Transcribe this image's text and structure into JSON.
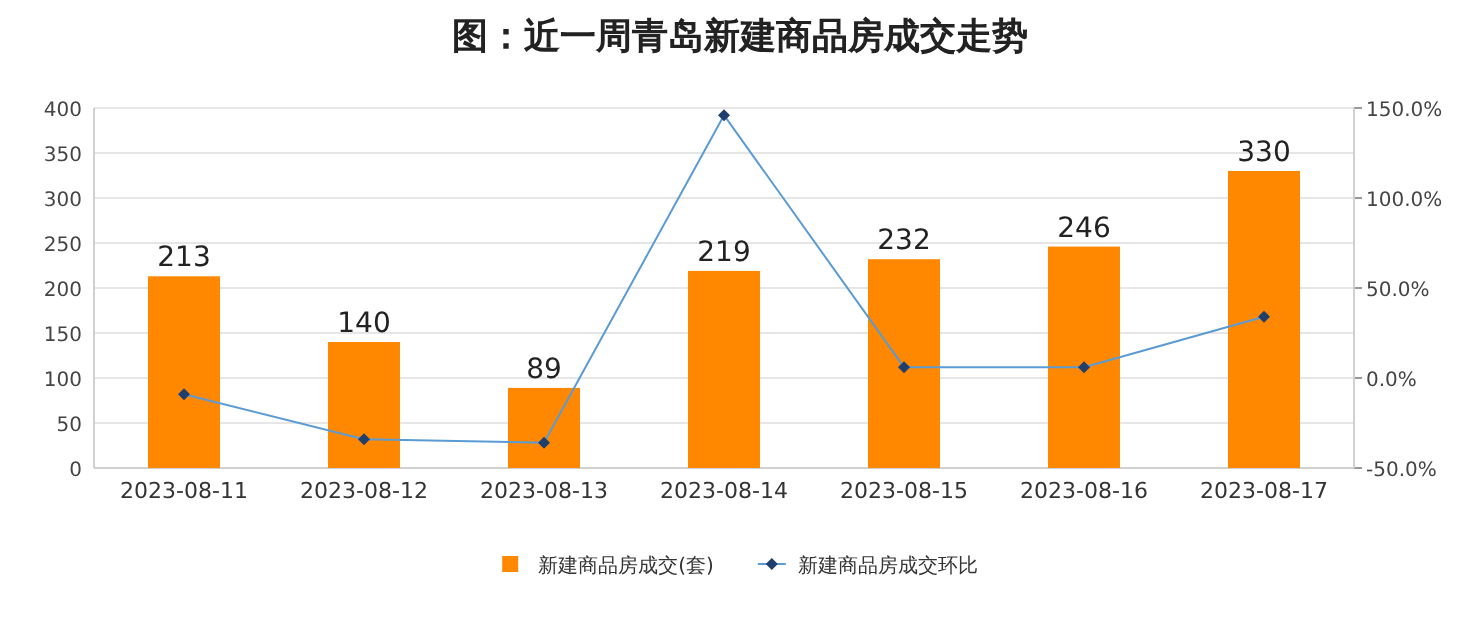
{
  "chart_data": {
    "type": "bar",
    "title": "图：近一周青岛新建商品房成交走势",
    "categories": [
      "2023-08-11",
      "2023-08-12",
      "2023-08-13",
      "2023-08-14",
      "2023-08-15",
      "2023-08-16",
      "2023-08-17"
    ],
    "series": [
      {
        "name": "新建商品房成交(套)",
        "color": "#ff8800",
        "values": [
          213,
          140,
          89,
          219,
          232,
          246,
          330
        ],
        "value_labels": [
          "213",
          "140",
          "89",
          "219",
          "232",
          "246",
          "330"
        ]
      },
      {
        "name": "新建商品房成交环比",
        "type": "line",
        "axis": "y2",
        "color": "#5b9bd5",
        "marker": "diamond",
        "values": [
          -9,
          -34,
          -36,
          146,
          6,
          6,
          34
        ]
      }
    ],
    "ylim": [
      0,
      400
    ],
    "yticks": [
      0,
      50,
      100,
      150,
      200,
      250,
      300,
      350,
      400
    ],
    "y2lim": [
      -50,
      150
    ],
    "y2ticks": [
      {
        "value": -50,
        "label": "-50.0%"
      },
      {
        "value": 0,
        "label": "0.0%"
      },
      {
        "value": 50,
        "label": "50.0%"
      },
      {
        "value": 100,
        "label": "100.0%"
      },
      {
        "value": 150,
        "label": "150.0%"
      }
    ],
    "grid": "y",
    "legend": "bottom"
  }
}
